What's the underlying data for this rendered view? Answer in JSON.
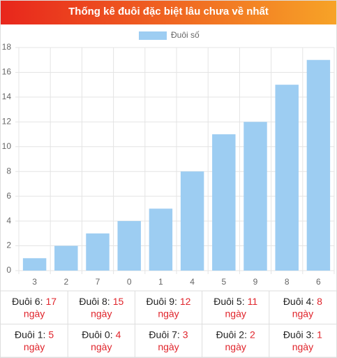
{
  "chart_data": {
    "type": "bar",
    "title": "Thống kê đuôi đặc biệt lâu chưa về nhất",
    "categories": [
      "3",
      "2",
      "7",
      "0",
      "1",
      "4",
      "5",
      "9",
      "8",
      "6"
    ],
    "series": [
      {
        "name": "Đuôi số",
        "color": "#9dcdf2",
        "values": [
          1,
          2,
          3,
          4,
          5,
          8,
          11,
          12,
          15,
          17
        ]
      }
    ],
    "ylim": [
      0,
      18
    ],
    "yticks": [
      0,
      2,
      4,
      6,
      8,
      10,
      12,
      14,
      16,
      18
    ],
    "grid": true,
    "legend": "top"
  },
  "table": {
    "unit": "ngày",
    "rows": [
      [
        {
          "label": "Đuôi 6:",
          "value": 17
        },
        {
          "label": "Đuôi 8:",
          "value": 15
        },
        {
          "label": "Đuôi 9:",
          "value": 12
        },
        {
          "label": "Đuôi 5:",
          "value": 11
        },
        {
          "label": "Đuôi 4:",
          "value": 8
        }
      ],
      [
        {
          "label": "Đuôi 1:",
          "value": 5
        },
        {
          "label": "Đuôi 0:",
          "value": 4
        },
        {
          "label": "Đuôi 7:",
          "value": 3
        },
        {
          "label": "Đuôi 2:",
          "value": 2
        },
        {
          "label": "Đuôi 3:",
          "value": 1
        }
      ]
    ]
  }
}
